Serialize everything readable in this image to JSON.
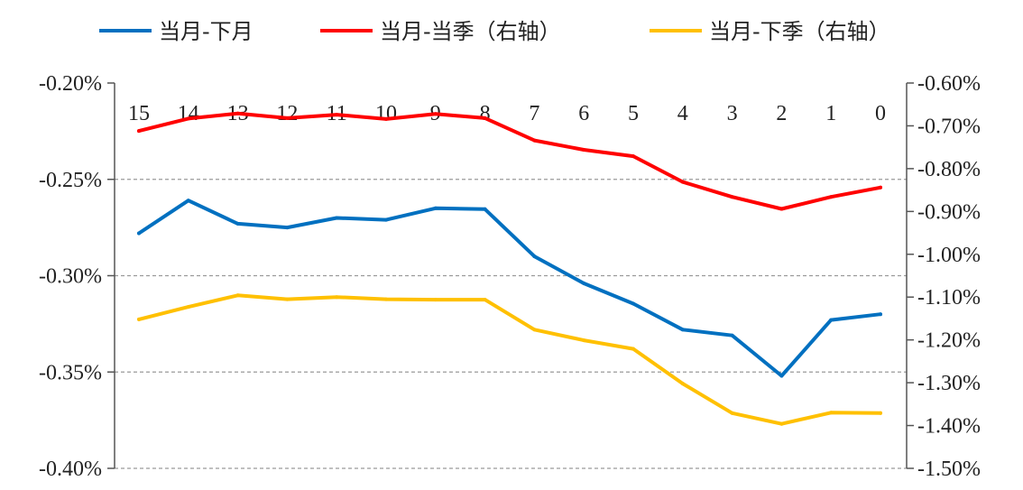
{
  "chart_data": {
    "type": "line",
    "x": [
      15,
      14,
      13,
      12,
      11,
      10,
      9,
      8,
      7,
      6,
      5,
      4,
      3,
      2,
      1,
      0
    ],
    "x_tick_labels": [
      "15",
      "14",
      "13",
      "12",
      "11",
      "10",
      "9",
      "8",
      "7",
      "6",
      "5",
      "4",
      "3",
      "2",
      "1",
      "0"
    ],
    "y_left": {
      "ylim": [
        -0.4,
        -0.2
      ],
      "ticks": [
        -0.2,
        -0.25,
        -0.3,
        -0.35,
        -0.4
      ],
      "tick_labels": [
        "-0.20%",
        "-0.25%",
        "-0.30%",
        "-0.35%",
        "-0.40%"
      ]
    },
    "y_right": {
      "ylim": [
        -1.5,
        -0.6
      ],
      "ticks": [
        -0.6,
        -0.7,
        -0.8,
        -0.9,
        -1.0,
        -1.1,
        -1.2,
        -1.3,
        -1.4,
        -1.5
      ],
      "tick_labels": [
        "-0.60%",
        "-0.70%",
        "-0.80%",
        "-0.90%",
        "-1.00%",
        "-1.10%",
        "-1.20%",
        "-1.30%",
        "-1.40%",
        "-1.50%"
      ]
    },
    "grid": "horizontal-dashed",
    "legend_position": "top",
    "series": [
      {
        "name": "当月-下月",
        "axis": "left",
        "color": "#0070C0",
        "values": [
          -0.278,
          -0.261,
          -0.273,
          -0.275,
          -0.27,
          -0.271,
          -0.265,
          -0.2655,
          -0.29,
          -0.304,
          -0.3145,
          -0.328,
          -0.331,
          -0.352,
          -0.323,
          -0.32
        ]
      },
      {
        "name": "当月-当季（右轴）",
        "axis": "right",
        "color": "#FF0000",
        "values": [
          -0.712,
          -0.683,
          -0.671,
          -0.682,
          -0.674,
          -0.684,
          -0.672,
          -0.682,
          -0.734,
          -0.756,
          -0.771,
          -0.831,
          -0.866,
          -0.894,
          -0.866,
          -0.844
        ]
      },
      {
        "name": "当月-下季（右轴）",
        "axis": "right",
        "color": "#FFC000",
        "values": [
          -1.152,
          -1.123,
          -1.096,
          -1.105,
          -1.1,
          -1.105,
          -1.106,
          -1.106,
          -1.176,
          -1.201,
          -1.221,
          -1.302,
          -1.371,
          -1.396,
          -1.37,
          -1.371
        ]
      }
    ]
  }
}
